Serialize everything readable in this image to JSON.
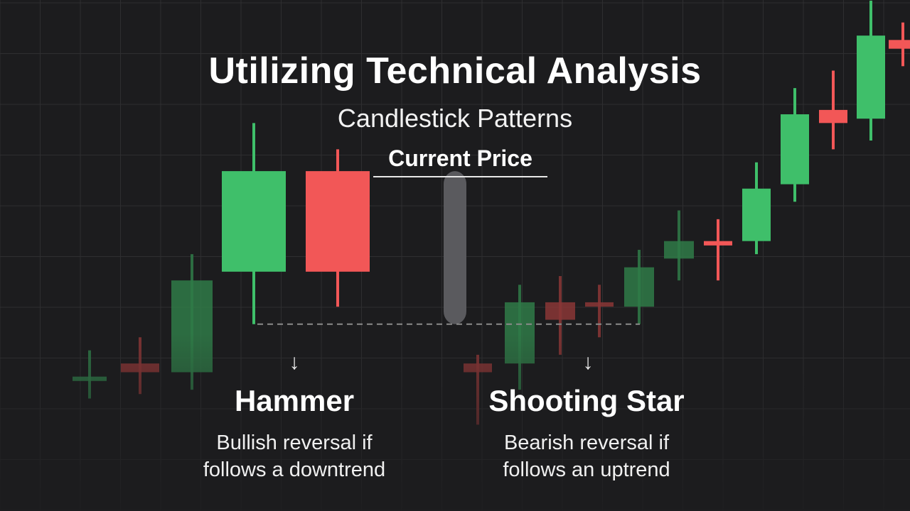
{
  "header": {
    "title": "Utilizing Technical Analysis",
    "subtitle": "Candlestick Patterns"
  },
  "current_price_label": "Current Price",
  "patterns": [
    {
      "name": "Hammer",
      "description_line1": "Bullish reversal if",
      "description_line2": "follows a downtrend",
      "arrow": "↓"
    },
    {
      "name": "Shooting Star",
      "description_line1": "Bearish reversal if",
      "description_line2": "follows an uptrend",
      "arrow": "↓"
    }
  ],
  "colors": {
    "background": "#1c1c1e",
    "grid": "#2e2e30",
    "bullish": "#3fbf6a",
    "bearish": "#f25757",
    "bullish_dim": "#2f7a48",
    "bearish_dim": "#8a3636",
    "current_price_candle": "#5a5a5e",
    "dashed_line": "#8a8a8a"
  },
  "chart_data": {
    "type": "candlestick",
    "title": "",
    "xlabel": "",
    "ylabel": "",
    "grid": true,
    "ylim": [
      0,
      100
    ],
    "candles": [
      {
        "open": 20,
        "close": 21,
        "high": 27,
        "low": 16,
        "dir": "up",
        "faded": true
      },
      {
        "open": 24,
        "close": 22,
        "high": 30,
        "low": 17,
        "dir": "down",
        "faded": true
      },
      {
        "open": 22,
        "close": 43,
        "high": 49,
        "low": 18,
        "dir": "up",
        "faded": true
      },
      {
        "open": 45,
        "close": 68,
        "high": 79,
        "low": 33,
        "dir": "up",
        "faded": false
      },
      {
        "open": 68,
        "close": 45,
        "high": 73,
        "low": 37,
        "dir": "down",
        "faded": false
      },
      {
        "open": 68,
        "close": 33,
        "high": 68,
        "low": 33,
        "dir": "current",
        "faded": false
      },
      {
        "open": 24,
        "close": 22,
        "high": 26,
        "low": 10,
        "dir": "down",
        "faded": true
      },
      {
        "open": 24,
        "close": 38,
        "high": 42,
        "low": 18,
        "dir": "up",
        "faded": true
      },
      {
        "open": 38,
        "close": 34,
        "high": 44,
        "low": 26,
        "dir": "down",
        "faded": true
      },
      {
        "open": 38,
        "close": 37,
        "high": 42,
        "low": 30,
        "dir": "down",
        "faded": true
      },
      {
        "open": 37,
        "close": 46,
        "high": 50,
        "low": 33,
        "dir": "up",
        "faded": true
      },
      {
        "open": 48,
        "close": 52,
        "high": 59,
        "low": 43,
        "dir": "up",
        "faded": true
      },
      {
        "open": 52,
        "close": 51,
        "high": 57,
        "low": 43,
        "dir": "down",
        "faded": false
      },
      {
        "open": 52,
        "close": 64,
        "high": 70,
        "low": 49,
        "dir": "up",
        "faded": false
      },
      {
        "open": 65,
        "close": 81,
        "high": 87,
        "low": 61,
        "dir": "up",
        "faded": false
      },
      {
        "open": 82,
        "close": 79,
        "high": 91,
        "low": 73,
        "dir": "down",
        "faded": false
      },
      {
        "open": 80,
        "close": 99,
        "high": 107,
        "low": 75,
        "dir": "up",
        "faded": false
      },
      {
        "open": 98,
        "close": 96,
        "high": 102,
        "low": 92,
        "dir": "down",
        "faded": false
      }
    ]
  }
}
